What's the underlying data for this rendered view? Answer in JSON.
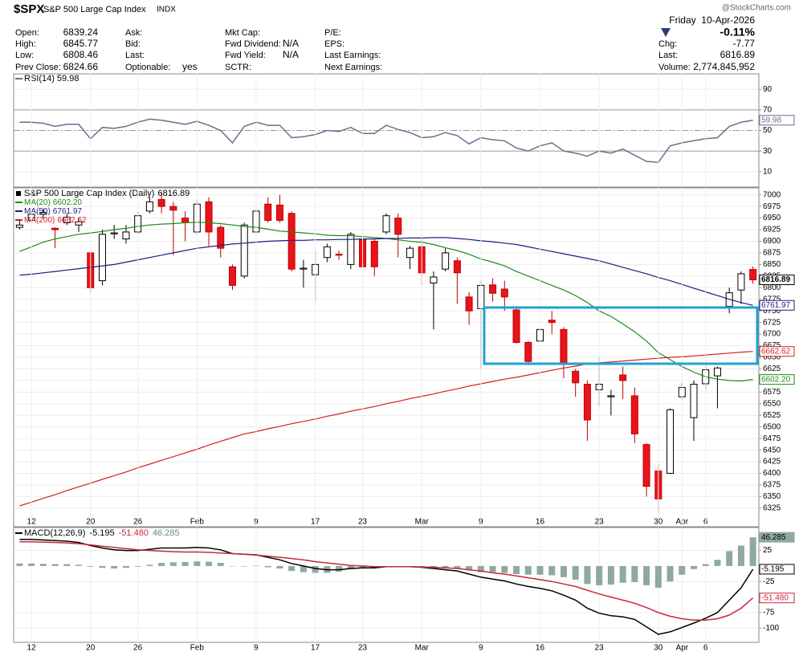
{
  "header": {
    "symbol": "$SPX",
    "name": "S&P 500 Large Cap Index",
    "exchange": "INDX",
    "source": "@StockCharts.com",
    "date": "Friday  10-Apr-2026",
    "change_pct": "-0.11%",
    "columns": [
      [
        {
          "label": "Open:",
          "value": "6839.24"
        },
        {
          "label": "High:",
          "value": "6845.77"
        },
        {
          "label": "Low:",
          "value": "6808.46"
        },
        {
          "label": "Prev Close:",
          "value": "6824.66"
        }
      ],
      [
        {
          "label": "Ask:"
        },
        {
          "label": "Bid:"
        },
        {
          "label": "Last:"
        },
        {
          "label": "Optionable:",
          "value": "yes"
        }
      ],
      [
        {
          "label": "Mkt Cap:"
        },
        {
          "label": "Fwd Dividend:",
          "value": "N/A"
        },
        {
          "label": "Fwd Yield:",
          "value": "N/A"
        },
        {
          "label": "SCTR:"
        }
      ],
      [
        {
          "label": "P/E:"
        },
        {
          "label": "EPS:"
        },
        {
          "label": "Last Earnings:"
        },
        {
          "label": "Next Earnings:"
        }
      ]
    ],
    "summary": [
      {
        "label": "Chg:",
        "value": "-7.77"
      },
      {
        "label": "Last:",
        "value": "6816.89"
      },
      {
        "label": "Volume:",
        "value": "2,774,845,952"
      }
    ]
  },
  "chart_data": [
    {
      "type": "candlestick",
      "title": "S&P 500 Large Cap Index (Daily)",
      "last_label": "6816.89",
      "categories": [
        null,
        "12",
        null,
        null,
        null,
        null,
        "20",
        null,
        null,
        null,
        "26",
        null,
        null,
        null,
        null,
        "Feb",
        null,
        null,
        null,
        null,
        "9",
        null,
        null,
        null,
        null,
        "17",
        null,
        null,
        null,
        "23",
        null,
        null,
        null,
        null,
        "Mar",
        null,
        null,
        null,
        null,
        "9",
        null,
        null,
        null,
        null,
        "16",
        null,
        null,
        null,
        null,
        "23",
        null,
        null,
        null,
        null,
        "30",
        null,
        "Apr",
        null,
        "6",
        null,
        null,
        null,
        null
      ],
      "open": [
        6930,
        6945,
        6958,
        6928,
        6940,
        6935,
        6875,
        6815,
        6916,
        6905,
        6920,
        6965,
        6990,
        6975,
        6950,
        6920,
        6985,
        6930,
        6845,
        6825,
        6920,
        6980,
        6978,
        6960,
        6840,
        6828,
        6865,
        6872,
        6850,
        6905,
        6900,
        6920,
        6950,
        6865,
        6888,
        6810,
        6840,
        6858,
        6780,
        6755,
        6806,
        6797,
        6752,
        6682,
        6685,
        6730,
        6710,
        6620,
        6592,
        6580,
        6565,
        6612,
        6567,
        6462,
        6405,
        6400,
        6565,
        6520,
        6593,
        6610,
        6760,
        6795,
        6839.24
      ],
      "high": [
        6945,
        6965,
        6970,
        6930,
        6960,
        6950,
        6878,
        6925,
        6935,
        6935,
        6965,
        6995,
        7005,
        6985,
        6965,
        6990,
        6995,
        6935,
        6850,
        6940,
        6975,
        6995,
        7000,
        6965,
        6860,
        6880,
        6895,
        6880,
        6920,
        6915,
        6905,
        6960,
        6960,
        6890,
        6910,
        6835,
        6885,
        6865,
        6790,
        6815,
        6820,
        6815,
        6760,
        6685,
        6735,
        6750,
        6715,
        6625,
        6600,
        6650,
        6580,
        6630,
        6585,
        6465,
        6420,
        6540,
        6595,
        6600,
        6630,
        6630,
        6800,
        6835,
        6845.77
      ],
      "low": [
        6925,
        6940,
        6950,
        6885,
        6935,
        6920,
        6790,
        6805,
        6905,
        6895,
        6915,
        6960,
        6960,
        6870,
        6900,
        6915,
        6890,
        6865,
        6795,
        6820,
        6910,
        6940,
        6940,
        6835,
        6800,
        6770,
        6855,
        6860,
        6840,
        6835,
        6825,
        6915,
        6865,
        6840,
        6805,
        6710,
        6835,
        6765,
        6720,
        6625,
        6770,
        6750,
        6680,
        6635,
        6680,
        6700,
        6605,
        6565,
        6470,
        6545,
        6525,
        6560,
        6465,
        6350,
        6315,
        6400,
        6560,
        6470,
        6580,
        6540,
        6745,
        6765,
        6808.46
      ],
      "close": [
        6935,
        6958,
        6962,
        6925,
        6952,
        6942,
        6800,
        6915,
        6918,
        6920,
        6955,
        6985,
        6975,
        6967,
        6940,
        6980,
        6920,
        6885,
        6805,
        6935,
        6965,
        6945,
        6945,
        6840,
        6842,
        6850,
        6888,
        6870,
        6915,
        6845,
        6845,
        6955,
        6915,
        6885,
        6832,
        6823,
        6875,
        6832,
        6750,
        6805,
        6788,
        6780,
        6682,
        6641,
        6710,
        6725,
        6638,
        6595,
        6515,
        6592,
        6567,
        6600,
        6485,
        6372,
        6345,
        6537,
        6585,
        6592,
        6623,
        6627,
        6789,
        6830,
        6816.89
      ],
      "series": [
        {
          "name": "MA(20)",
          "color": "#1a8c1a",
          "last_label": "6602.20",
          "values": [
            6878,
            6888,
            6898,
            6905,
            6910,
            6915,
            6918,
            6921,
            6925,
            6928,
            6932,
            6935,
            6937,
            6938,
            6940,
            6941,
            6940,
            6938,
            6935,
            6932,
            6930,
            6926,
            6922,
            6920,
            6918,
            6916,
            6913,
            6912,
            6912,
            6910,
            6908,
            6906,
            6903,
            6900,
            6898,
            6893,
            6886,
            6880,
            6872,
            6862,
            6855,
            6847,
            6835,
            6825,
            6815,
            6805,
            6795,
            6783,
            6768,
            6750,
            6738,
            6722,
            6705,
            6685,
            6660,
            6645,
            6630,
            6618,
            6608,
            6603,
            6600,
            6599,
            6602.2
          ]
        },
        {
          "name": "MA(50)",
          "color": "#1c1c80",
          "last_label": "6761.97",
          "values": [
            6827,
            6829,
            6832,
            6835,
            6838,
            6841,
            6844,
            6847,
            6850,
            6855,
            6860,
            6865,
            6870,
            6875,
            6880,
            6885,
            6888,
            6891,
            6894,
            6896,
            6898,
            6900,
            6901,
            6902,
            6902,
            6903,
            6903,
            6904,
            6904,
            6905,
            6905,
            6906,
            6906,
            6907,
            6907,
            6908,
            6908,
            6906,
            6904,
            6901,
            6899,
            6896,
            6893,
            6888,
            6883,
            6878,
            6873,
            6868,
            6863,
            6858,
            6851,
            6844,
            6837,
            6830,
            6822,
            6815,
            6807,
            6799,
            6791,
            6783,
            6775,
            6768,
            6761.97
          ]
        },
        {
          "name": "MA(200)",
          "color": "#d42020",
          "last_label": "6662.62",
          "values": [
            6330,
            6338,
            6346,
            6354,
            6363,
            6371,
            6379,
            6387,
            6395,
            6403,
            6412,
            6420,
            6428,
            6436,
            6444,
            6452,
            6461,
            6469,
            6477,
            6485,
            6490,
            6496,
            6501,
            6507,
            6512,
            6517,
            6523,
            6528,
            6534,
            6539,
            6544,
            6550,
            6555,
            6561,
            6566,
            6571,
            6577,
            6582,
            6588,
            6593,
            6598,
            6603,
            6607,
            6612,
            6617,
            6622,
            6627,
            6631,
            6636,
            6638,
            6640,
            6642,
            6644,
            6646,
            6648,
            6650,
            6651,
            6653,
            6655,
            6657,
            6659,
            6661,
            6662.62
          ]
        }
      ],
      "ylim": [
        6285,
        7015
      ],
      "yticks": [
        6325,
        6350,
        6375,
        6400,
        6425,
        6450,
        6475,
        6500,
        6525,
        6550,
        6575,
        6600,
        6625,
        6650,
        6675,
        6700,
        6725,
        6750,
        6775,
        6800,
        6825,
        6850,
        6875,
        6900,
        6925,
        6950,
        6975,
        7000
      ],
      "grid": true
    },
    {
      "type": "line",
      "series": [
        {
          "name": "RSI(14)",
          "color": "#6e6e8e",
          "last_label": "59.98",
          "values": [
            58,
            58,
            57,
            54,
            56,
            56,
            42,
            53,
            52,
            54,
            58,
            61,
            60,
            58,
            56,
            59,
            55,
            50,
            38,
            54,
            58,
            55,
            55,
            43,
            44,
            46,
            50,
            49,
            53,
            47,
            47,
            55,
            51,
            48,
            43,
            44,
            48,
            45,
            37,
            43,
            41,
            40,
            33,
            30,
            35,
            38,
            30,
            28,
            25,
            30,
            28,
            32,
            26,
            20,
            19,
            35,
            38,
            40,
            42,
            43,
            54,
            58,
            59.98
          ]
        }
      ],
      "ylim": [
        -5,
        105
      ],
      "yticks": [
        10,
        30,
        50,
        70,
        90
      ],
      "reference_lines": [
        {
          "value": 70
        },
        {
          "value": 50,
          "dashed": true
        },
        {
          "value": 30
        }
      ],
      "grid": true
    },
    {
      "type": "line",
      "categories": [
        null,
        "12",
        null,
        null,
        null,
        null,
        "20",
        null,
        null,
        null,
        "26",
        null,
        null,
        null,
        null,
        "Feb",
        null,
        null,
        null,
        null,
        "9",
        null,
        null,
        null,
        null,
        "17",
        null,
        null,
        null,
        "23",
        null,
        null,
        null,
        null,
        "Mar",
        null,
        null,
        null,
        null,
        "9",
        null,
        null,
        null,
        null,
        "16",
        null,
        null,
        null,
        null,
        "23",
        null,
        null,
        null,
        null,
        "30",
        null,
        "Apr",
        null,
        "6",
        null,
        null,
        null,
        null
      ],
      "title": "MACD(12,26,9)",
      "series": [
        {
          "name": "Histogram",
          "type": "bar",
          "color": "#8fa9a1",
          "last_label": "46.285",
          "values": [
            4,
            4,
            3.5,
            3,
            3,
            2,
            -1,
            -3,
            -4,
            -3,
            -1,
            2,
            5,
            6,
            6.5,
            7.5,
            7,
            5,
            0,
            0,
            0.5,
            -2,
            -4,
            -8,
            -10,
            -11,
            -11,
            -9,
            -5,
            -3,
            -2,
            0,
            0,
            0,
            -0.5,
            -2,
            -3,
            -4,
            -7,
            -10,
            -10,
            -11,
            -13,
            -14,
            -14,
            -15,
            -18,
            -22,
            -29,
            -31,
            -30,
            -27,
            -26,
            -31,
            -35,
            -25,
            -14,
            -5,
            3,
            10,
            24,
            33,
            46.285
          ]
        },
        {
          "name": "MACD",
          "color": "#000000",
          "last_label": "-5.195",
          "values": [
            43,
            43,
            42,
            41,
            40,
            38,
            33,
            29,
            26,
            25,
            25,
            27,
            29,
            29,
            29,
            30,
            29,
            26,
            20,
            19,
            18,
            14,
            10,
            4,
            0,
            -4,
            -6,
            -6,
            -4,
            -3,
            -3,
            -1,
            -1,
            -1,
            -2,
            -4,
            -6,
            -8,
            -13,
            -18,
            -21,
            -24,
            -29,
            -33,
            -36,
            -40,
            -47,
            -55,
            -68,
            -76,
            -80,
            -82,
            -86,
            -98,
            -110,
            -106,
            -99,
            -92,
            -84,
            -75,
            -55,
            -35,
            -5.195
          ]
        },
        {
          "name": "Signal",
          "color": "#c8283c",
          "last_label": "-51.480",
          "values": [
            39,
            39,
            38.5,
            38,
            37,
            36,
            34,
            32,
            30,
            28,
            26,
            25,
            24,
            23,
            22.5,
            22.5,
            22,
            21,
            20,
            19,
            17.5,
            16,
            14,
            12,
            10,
            7,
            5,
            3,
            1,
            0,
            -1,
            -1,
            -1,
            -1,
            -1.5,
            -2,
            -3,
            -4,
            -6,
            -8,
            -11,
            -13,
            -16,
            -19,
            -22,
            -25,
            -29,
            -33,
            -39,
            -45,
            -50,
            -55,
            -60,
            -67,
            -75,
            -81,
            -85,
            -87,
            -87,
            -85,
            -79,
            -68,
            -51.48
          ]
        }
      ],
      "ylim": [
        -123,
        62
      ],
      "yticks": [
        25,
        -25,
        -75,
        -100
      ],
      "grid": true
    }
  ]
}
